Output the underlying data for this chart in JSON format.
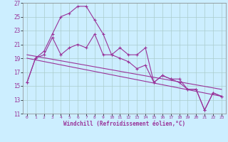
{
  "xlabel": "Windchill (Refroidissement éolien,°C)",
  "background_color": "#cceeff",
  "grid_color": "#aacccc",
  "line_color": "#993399",
  "xlim": [
    -0.5,
    23.5
  ],
  "ylim": [
    11,
    27
  ],
  "xticks": [
    0,
    1,
    2,
    3,
    4,
    5,
    6,
    7,
    8,
    9,
    10,
    11,
    12,
    13,
    14,
    15,
    16,
    17,
    18,
    19,
    20,
    21,
    22,
    23
  ],
  "yticks": [
    11,
    13,
    15,
    17,
    19,
    21,
    23,
    25,
    27
  ],
  "series1_x": [
    0,
    1,
    2,
    3,
    4,
    5,
    6,
    7,
    8,
    9,
    10,
    11,
    12,
    13,
    14,
    15,
    16,
    17,
    18,
    19,
    20,
    21,
    22,
    23
  ],
  "series1_y": [
    15.5,
    19.0,
    20.0,
    22.5,
    25.0,
    25.5,
    26.5,
    26.5,
    24.5,
    22.5,
    19.5,
    20.5,
    19.5,
    19.5,
    20.5,
    15.5,
    16.5,
    16.0,
    16.0,
    14.5,
    14.5,
    11.5,
    14.0,
    13.5
  ],
  "series2_x": [
    0,
    1,
    2,
    3,
    4,
    5,
    6,
    7,
    8,
    9,
    10,
    11,
    12,
    13,
    14,
    15,
    16,
    17,
    18,
    19,
    20,
    21,
    22,
    23
  ],
  "series2_y": [
    15.5,
    19.0,
    19.5,
    22.0,
    19.5,
    20.5,
    21.0,
    20.5,
    22.5,
    19.5,
    19.5,
    19.0,
    18.5,
    17.5,
    18.0,
    15.5,
    16.5,
    16.0,
    15.5,
    14.5,
    14.5,
    11.5,
    14.0,
    13.5
  ],
  "series3_x": [
    0,
    23
  ],
  "series3_y": [
    19.5,
    14.5
  ],
  "series4_x": [
    0,
    23
  ],
  "series4_y": [
    19.0,
    13.5
  ]
}
